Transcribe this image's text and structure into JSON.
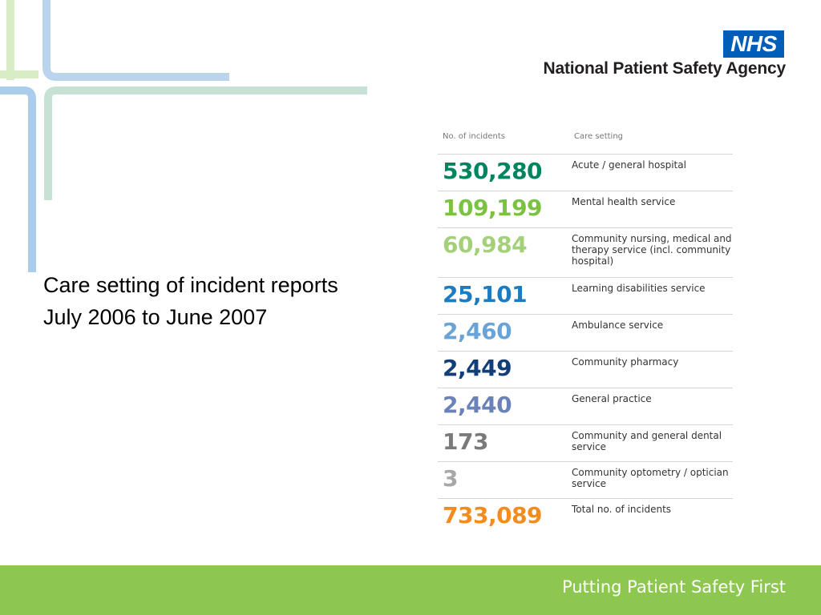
{
  "header": {
    "logo_text": "NHS",
    "agency_name": "National Patient Safety Agency"
  },
  "caption": {
    "line1": "Care setting of incident reports",
    "line2": "July 2006 to June 2007"
  },
  "table": {
    "headers": {
      "count": "No. of incidents",
      "setting": "Care setting"
    },
    "rows": [
      {
        "count": "530,280",
        "setting": "Acute / general hospital",
        "color": "#00855e"
      },
      {
        "count": "109,199",
        "setting": "Mental health service",
        "color": "#7cc242"
      },
      {
        "count": "60,984",
        "setting": "Community nursing, medical and therapy service (incl. community hospital)",
        "color": "#a4d07a"
      },
      {
        "count": "25,101",
        "setting": "Learning disabilities service",
        "color": "#1e7bbf"
      },
      {
        "count": "2,460",
        "setting": "Ambulance service",
        "color": "#6aa3d5"
      },
      {
        "count": "2,449",
        "setting": "Community pharmacy",
        "color": "#123f7a"
      },
      {
        "count": "2,440",
        "setting": "General practice",
        "color": "#6b82b8"
      },
      {
        "count": "173",
        "setting": "Community and general dental service",
        "color": "#7a7a7a"
      },
      {
        "count": "3",
        "setting": "Community optometry / optician service",
        "color": "#a8a8a8"
      },
      {
        "count": "733,089",
        "setting": "Total no. of incidents",
        "color": "#f28c1e"
      }
    ]
  },
  "footer": {
    "slogan": "Putting Patient Safety First",
    "color": "#8dc74f"
  },
  "decoration": {
    "line_colors": [
      "#d8ecc6",
      "#b9d4ec",
      "#c7e2d5",
      "#a9cdea"
    ]
  }
}
